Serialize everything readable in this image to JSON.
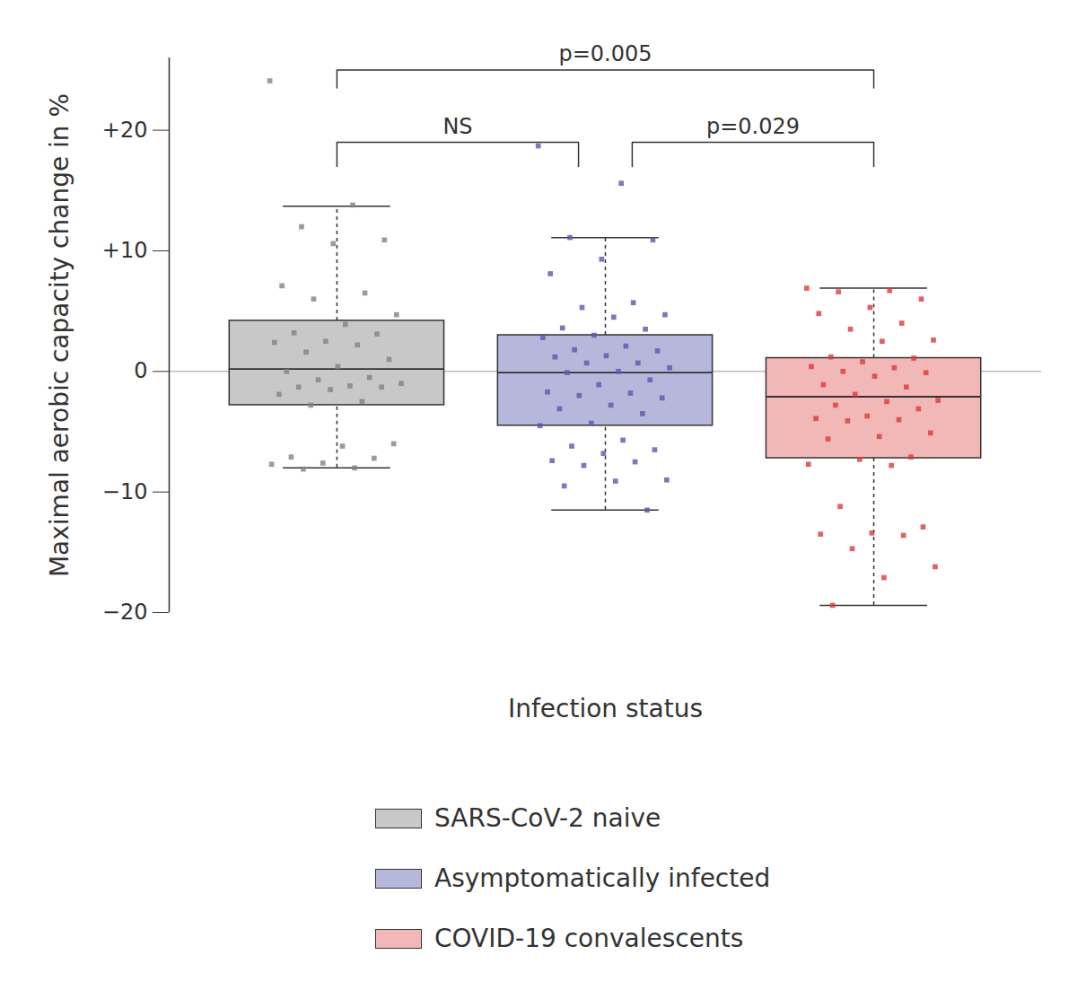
{
  "chart_data": {
    "type": "box",
    "xlabel": "Infection status",
    "ylabel": "Maximal aerobic capacity change in %",
    "ylim": [
      -20,
      26
    ],
    "yticks": [
      {
        "value": -20,
        "label": "−20"
      },
      {
        "value": -10,
        "label": "−10"
      },
      0,
      {
        "value": 10,
        "label": "+10"
      },
      {
        "value": 20,
        "label": "+20"
      }
    ],
    "reference_line": 0,
    "tick_labels": "y",
    "legend": "bottom",
    "series": [
      {
        "name": "SARS-CoV-2 naive",
        "color": "#c8c8c8",
        "marker": "square",
        "box": {
          "whisker_low": -8.0,
          "q1": -2.8,
          "median": 0.2,
          "q3": 4.2,
          "whisker_high": 13.7
        },
        "points": [
          24.1,
          13.8,
          12.0,
          10.9,
          10.6,
          7.1,
          6.5,
          6.0,
          4.7,
          3.9,
          3.2,
          3.1,
          2.5,
          2.4,
          2.2,
          1.6,
          1.0,
          0.4,
          0.0,
          -0.5,
          -0.7,
          -1.0,
          -1.2,
          -1.3,
          -1.3,
          -1.5,
          -1.9,
          -2.5,
          -2.8,
          -6.0,
          -6.2,
          -7.1,
          -7.2,
          -7.6,
          -7.7,
          -8.0,
          -8.1
        ]
      },
      {
        "name": "Asymptomatically infected",
        "color": "#b7b7dc",
        "marker": "square",
        "box": {
          "whisker_low": -11.5,
          "q1": -4.5,
          "median": -0.1,
          "q3": 3.0,
          "whisker_high": 11.1
        },
        "points": [
          18.7,
          15.6,
          11.1,
          10.9,
          9.3,
          8.1,
          5.7,
          5.3,
          4.7,
          4.5,
          3.6,
          3.5,
          3.0,
          2.8,
          2.1,
          1.8,
          1.7,
          1.3,
          1.2,
          0.7,
          0.7,
          0.3,
          0.0,
          -0.1,
          -0.7,
          -1.1,
          -1.7,
          -1.8,
          -2.0,
          -2.2,
          -2.8,
          -3.1,
          -3.5,
          -4.3,
          -4.5,
          -5.7,
          -6.2,
          -6.5,
          -6.8,
          -7.4,
          -7.5,
          -7.8,
          -9.0,
          -9.1,
          -9.5,
          -11.5
        ]
      },
      {
        "name": "COVID-19 convalescents",
        "color": "#f2b8b8",
        "marker": "square",
        "box": {
          "whisker_low": -19.4,
          "q1": -7.2,
          "median": -2.1,
          "q3": 1.1,
          "whisker_high": 6.9
        },
        "points": [
          6.9,
          6.7,
          6.6,
          6.0,
          5.3,
          4.8,
          4.0,
          3.5,
          2.6,
          2.5,
          1.2,
          1.1,
          0.8,
          0.4,
          0.3,
          0.0,
          -0.1,
          -0.4,
          -1.1,
          -1.3,
          -1.9,
          -2.4,
          -2.5,
          -2.8,
          -3.1,
          -3.7,
          -3.9,
          -4.0,
          -4.1,
          -5.1,
          -5.4,
          -5.6,
          -7.1,
          -7.3,
          -7.7,
          -7.8,
          -11.2,
          -12.9,
          -13.4,
          -13.5,
          -13.6,
          -14.7,
          -16.2,
          -17.1,
          -19.4
        ]
      }
    ],
    "comparisons": [
      {
        "groups": [
          "SARS-CoV-2 naive",
          "COVID-19 convalescents"
        ],
        "label": "p=0.005"
      },
      {
        "groups": [
          "SARS-CoV-2 naive",
          "Asymptomatically infected"
        ],
        "label": "NS"
      },
      {
        "groups": [
          "Asymptomatically infected",
          "COVID-19 convalescents"
        ],
        "label": "p=0.029"
      }
    ]
  }
}
